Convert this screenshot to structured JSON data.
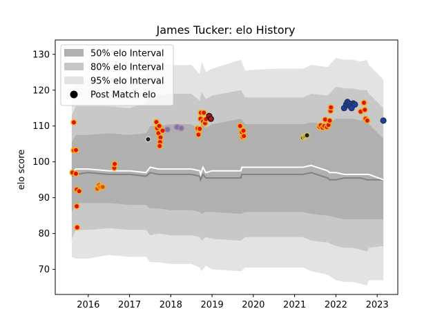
{
  "chart_data": {
    "type": "line",
    "title": "James Tucker: elo History",
    "xlabel": "",
    "ylabel": "elo score",
    "xlim": [
      2015.2,
      2023.5
    ],
    "ylim": [
      63.0,
      134.0
    ],
    "x_ticks": [
      2016,
      2017,
      2018,
      2019,
      2020,
      2021,
      2022,
      2023
    ],
    "y_ticks": [
      70,
      80,
      90,
      100,
      110,
      120,
      130
    ],
    "grid": false,
    "legend_position": "upper-left",
    "legend": [
      {
        "label": "50% elo Interval",
        "color": "#b0b0b0"
      },
      {
        "label": "80% elo Interval",
        "color": "#c6c6c6"
      },
      {
        "label": "95% elo Interval",
        "color": "#e3e3e3"
      },
      {
        "label": "Post Match elo",
        "color": "#000000"
      }
    ],
    "colors": {
      "band50": "#b0b0b0",
      "band80": "#c8c8c8",
      "band95": "#e3e3e3",
      "median_line": "#808080",
      "mean_line": "#ffffff",
      "point_edge_default": "#f2b01e",
      "point_fill_default": "#e01010"
    },
    "series": [
      {
        "name": "95% elo Interval",
        "x": [
          2015.6,
          2015.7,
          2016.0,
          2016.5,
          2017.0,
          2017.4,
          2017.5,
          2017.7,
          2018.0,
          2018.5,
          2018.7,
          2018.75,
          2018.85,
          2019.0,
          2019.7,
          2019.8,
          2020.5,
          2021.2,
          2021.4,
          2021.8,
          2022.0,
          2022.2,
          2022.4,
          2022.6,
          2022.75,
          2022.8,
          2023.15
        ],
        "lower": [
          73.5,
          73.0,
          73.0,
          74.0,
          73.5,
          73.5,
          72.0,
          72.0,
          71.5,
          71.5,
          70.5,
          69.5,
          71.0,
          70.0,
          69.5,
          70.5,
          70.5,
          70.5,
          69.5,
          68.5,
          67.0,
          66.5,
          66.5,
          66.0,
          65.5,
          67.0,
          67.0
        ],
        "upper": [
          118.0,
          123.0,
          123.0,
          122.5,
          123.5,
          124.0,
          126.5,
          127.0,
          127.0,
          127.0,
          124.5,
          128.0,
          125.0,
          126.0,
          128.5,
          125.5,
          126.0,
          126.0,
          127.0,
          126.5,
          129.0,
          128.5,
          128.5,
          128.0,
          128.5,
          127.0,
          123.0
        ]
      },
      {
        "name": "80% elo Interval",
        "x": [
          2015.6,
          2015.7,
          2016.0,
          2016.5,
          2017.0,
          2017.4,
          2017.5,
          2017.7,
          2018.0,
          2018.5,
          2018.7,
          2018.75,
          2018.85,
          2019.0,
          2019.7,
          2019.8,
          2020.5,
          2021.2,
          2021.4,
          2021.8,
          2022.0,
          2022.2,
          2022.4,
          2022.6,
          2022.75,
          2022.8,
          2023.15
        ],
        "lower": [
          78.5,
          81.0,
          81.0,
          81.5,
          81.0,
          81.0,
          79.5,
          80.0,
          79.5,
          79.5,
          79.0,
          78.0,
          79.0,
          78.5,
          78.0,
          79.0,
          79.0,
          79.0,
          78.0,
          77.5,
          76.5,
          76.0,
          76.0,
          75.5,
          75.0,
          76.0,
          76.5
        ],
        "upper": [
          113.0,
          115.5,
          115.5,
          115.5,
          115.0,
          116.5,
          118.5,
          118.5,
          119.0,
          119.0,
          117.0,
          119.5,
          117.5,
          118.5,
          120.0,
          118.0,
          118.0,
          118.0,
          119.0,
          118.5,
          121.0,
          120.5,
          120.5,
          120.0,
          120.0,
          119.0,
          115.0
        ]
      },
      {
        "name": "50% elo Interval",
        "x": [
          2015.6,
          2015.7,
          2016.0,
          2016.5,
          2017.0,
          2017.4,
          2017.5,
          2017.7,
          2018.0,
          2018.5,
          2018.7,
          2018.75,
          2018.85,
          2019.0,
          2019.7,
          2019.8,
          2020.5,
          2021.2,
          2021.4,
          2021.8,
          2022.0,
          2022.2,
          2022.4,
          2022.6,
          2022.75,
          2022.8,
          2023.15
        ],
        "lower": [
          86.0,
          88.5,
          88.5,
          88.5,
          88.0,
          88.0,
          87.0,
          87.0,
          86.5,
          86.5,
          86.0,
          85.5,
          86.0,
          86.0,
          85.5,
          86.0,
          86.0,
          86.0,
          85.5,
          85.0,
          84.5,
          84.0,
          84.0,
          84.0,
          84.0,
          84.0,
          84.0
        ],
        "upper": [
          105.5,
          107.5,
          107.5,
          108.0,
          107.5,
          108.0,
          110.0,
          110.0,
          110.5,
          110.5,
          109.0,
          111.0,
          109.5,
          110.5,
          112.0,
          110.5,
          110.5,
          110.5,
          111.0,
          110.5,
          112.0,
          112.0,
          112.0,
          111.5,
          111.5,
          110.5,
          106.5
        ]
      },
      {
        "name": "median",
        "x": [
          2015.6,
          2015.7,
          2016.0,
          2016.5,
          2017.0,
          2017.4,
          2017.5,
          2017.7,
          2018.0,
          2018.5,
          2018.7,
          2018.72,
          2018.78,
          2018.85,
          2019.0,
          2019.7,
          2019.72,
          2019.8,
          2020.5,
          2021.2,
          2021.4,
          2021.8,
          2021.85,
          2022.0,
          2022.2,
          2022.4,
          2022.6,
          2022.75,
          2022.8,
          2023.15
        ],
        "values": [
          96.0,
          96.5,
          97.0,
          96.5,
          96.5,
          96.0,
          97.0,
          96.5,
          96.5,
          96.5,
          96.0,
          95.0,
          96.5,
          95.5,
          95.5,
          95.5,
          96.5,
          96.5,
          96.5,
          96.5,
          97.0,
          95.5,
          95.0,
          95.0,
          95.5,
          95.5,
          95.5,
          95.0,
          95.0,
          95.0
        ]
      },
      {
        "name": "mean",
        "x": [
          2015.6,
          2015.7,
          2016.0,
          2016.5,
          2017.0,
          2017.4,
          2017.5,
          2017.7,
          2018.0,
          2018.5,
          2018.7,
          2018.72,
          2018.78,
          2018.85,
          2019.0,
          2019.7,
          2019.72,
          2019.8,
          2020.5,
          2021.2,
          2021.4,
          2021.8,
          2021.85,
          2022.0,
          2022.2,
          2022.4,
          2022.6,
          2022.75,
          2022.8,
          2023.15
        ],
        "values": [
          97.0,
          98.0,
          98.0,
          97.5,
          97.5,
          97.0,
          98.5,
          98.0,
          98.0,
          98.0,
          97.5,
          96.5,
          98.5,
          97.0,
          97.5,
          97.5,
          98.5,
          98.5,
          98.5,
          98.5,
          99.0,
          97.5,
          97.0,
          97.0,
          96.5,
          96.5,
          96.5,
          96.5,
          96.5,
          95.0
        ]
      }
    ],
    "points": [
      {
        "x": 2015.65,
        "y": 111.0,
        "fill": "#e01010",
        "edge": "#f2b01e"
      },
      {
        "x": 2015.65,
        "y": 103.2,
        "fill": "#e01010",
        "edge": "#f2b01e"
      },
      {
        "x": 2015.7,
        "y": 103.3,
        "fill": "#e01010",
        "edge": "#f2b01e"
      },
      {
        "x": 2015.62,
        "y": 97.0,
        "fill": "#e01010",
        "edge": "#f2b01e"
      },
      {
        "x": 2015.7,
        "y": 96.7,
        "fill": "#e01010",
        "edge": "#f2b01e"
      },
      {
        "x": 2015.72,
        "y": 92.3,
        "fill": "#e01010",
        "edge": "#f2b01e"
      },
      {
        "x": 2015.78,
        "y": 91.8,
        "fill": "#e01010",
        "edge": "#f2b01e"
      },
      {
        "x": 2015.72,
        "y": 87.6,
        "fill": "#e01010",
        "edge": "#f2b01e"
      },
      {
        "x": 2015.73,
        "y": 81.7,
        "fill": "#e01010",
        "edge": "#f2b01e"
      },
      {
        "x": 2016.22,
        "y": 92.5,
        "fill": "#e0501a",
        "edge": "#f2b01e"
      },
      {
        "x": 2016.26,
        "y": 93.5,
        "fill": "#e0501a",
        "edge": "#f2b01e"
      },
      {
        "x": 2016.3,
        "y": 93.0,
        "fill": "#e0501a",
        "edge": "#f2b01e"
      },
      {
        "x": 2016.35,
        "y": 93.0,
        "fill": "#e0501a",
        "edge": "#f2b01e"
      },
      {
        "x": 2016.63,
        "y": 98.3,
        "fill": "#e01010",
        "edge": "#f2b01e"
      },
      {
        "x": 2016.64,
        "y": 99.4,
        "fill": "#e01010",
        "edge": "#f2b01e"
      },
      {
        "x": 2017.45,
        "y": 106.3,
        "fill": "#202020",
        "edge": "#cccccc"
      },
      {
        "x": 2017.65,
        "y": 111.1,
        "fill": "#e01010",
        "edge": "#f2b01e"
      },
      {
        "x": 2017.67,
        "y": 109.4,
        "fill": "#e01010",
        "edge": "#f2b01e"
      },
      {
        "x": 2017.7,
        "y": 108.0,
        "fill": "#e01010",
        "edge": "#f2b01e"
      },
      {
        "x": 2017.72,
        "y": 110.0,
        "fill": "#e01010",
        "edge": "#f2b01e"
      },
      {
        "x": 2017.75,
        "y": 106.8,
        "fill": "#e01010",
        "edge": "#f2b01e"
      },
      {
        "x": 2017.74,
        "y": 105.5,
        "fill": "#e01010",
        "edge": "#f2b01e"
      },
      {
        "x": 2017.73,
        "y": 104.4,
        "fill": "#e01010",
        "edge": "#f2b01e"
      },
      {
        "x": 2017.8,
        "y": 108.7,
        "fill": "#e01010",
        "edge": "#f2b01e"
      },
      {
        "x": 2017.92,
        "y": 109.0,
        "fill": "#5d7fb0",
        "edge": "#c57a9b"
      },
      {
        "x": 2018.15,
        "y": 109.7,
        "fill": "#5d7fb0",
        "edge": "#c57a9b"
      },
      {
        "x": 2018.25,
        "y": 109.4,
        "fill": "#5d7fb0",
        "edge": "#c57a9b"
      },
      {
        "x": 2018.65,
        "y": 109.3,
        "fill": "#e01010",
        "edge": "#f2b01e"
      },
      {
        "x": 2018.67,
        "y": 107.6,
        "fill": "#e01010",
        "edge": "#f2b01e"
      },
      {
        "x": 2018.7,
        "y": 109.2,
        "fill": "#e01010",
        "edge": "#f2b01e"
      },
      {
        "x": 2018.72,
        "y": 112.0,
        "fill": "#e01010",
        "edge": "#f2b01e"
      },
      {
        "x": 2018.73,
        "y": 113.7,
        "fill": "#e01010",
        "edge": "#f2b01e"
      },
      {
        "x": 2018.78,
        "y": 111.3,
        "fill": "#e01010",
        "edge": "#f2b01e"
      },
      {
        "x": 2018.8,
        "y": 113.7,
        "fill": "#e01010",
        "edge": "#f2b01e"
      },
      {
        "x": 2018.83,
        "y": 110.8,
        "fill": "#e01010",
        "edge": "#f2b01e"
      },
      {
        "x": 2018.85,
        "y": 111.9,
        "fill": "#e01010",
        "edge": "#f2b01e"
      },
      {
        "x": 2018.93,
        "y": 112.8,
        "fill": "#c01010",
        "edge": "#202020"
      },
      {
        "x": 2018.97,
        "y": 112.0,
        "fill": "#c01010",
        "edge": "#202020"
      },
      {
        "x": 2019.68,
        "y": 110.0,
        "fill": "#e01010",
        "edge": "#f2b01e"
      },
      {
        "x": 2019.72,
        "y": 108.3,
        "fill": "#e01010",
        "edge": "#f2b01e"
      },
      {
        "x": 2019.74,
        "y": 106.9,
        "fill": "#e01010",
        "edge": "#f2b01e"
      },
      {
        "x": 2019.76,
        "y": 108.7,
        "fill": "#e01010",
        "edge": "#f2b01e"
      },
      {
        "x": 2019.77,
        "y": 107.2,
        "fill": "#e01010",
        "edge": "#f2b01e"
      },
      {
        "x": 2021.2,
        "y": 106.8,
        "fill": "#202020",
        "edge": "#d4c060"
      },
      {
        "x": 2021.24,
        "y": 107.0,
        "fill": "#202020",
        "edge": "#d4c060"
      },
      {
        "x": 2021.27,
        "y": 107.2,
        "fill": "#202020",
        "edge": "#d4c060"
      },
      {
        "x": 2021.3,
        "y": 107.4,
        "fill": "#202020",
        "edge": "#d4c060"
      },
      {
        "x": 2021.6,
        "y": 109.8,
        "fill": "#e01010",
        "edge": "#f2b01e"
      },
      {
        "x": 2021.63,
        "y": 110.2,
        "fill": "#e01010",
        "edge": "#f2b01e"
      },
      {
        "x": 2021.68,
        "y": 109.5,
        "fill": "#e01010",
        "edge": "#f2b01e"
      },
      {
        "x": 2021.72,
        "y": 110.0,
        "fill": "#e01010",
        "edge": "#f2b01e"
      },
      {
        "x": 2021.74,
        "y": 111.8,
        "fill": "#e01010",
        "edge": "#f2b01e"
      },
      {
        "x": 2021.78,
        "y": 109.7,
        "fill": "#e01010",
        "edge": "#f2b01e"
      },
      {
        "x": 2021.82,
        "y": 110.3,
        "fill": "#e01010",
        "edge": "#f2b01e"
      },
      {
        "x": 2021.85,
        "y": 111.5,
        "fill": "#e01010",
        "edge": "#f2b01e"
      },
      {
        "x": 2021.87,
        "y": 114.2,
        "fill": "#e01010",
        "edge": "#f2b01e"
      },
      {
        "x": 2021.88,
        "y": 115.2,
        "fill": "#e01010",
        "edge": "#f2b01e"
      },
      {
        "x": 2022.2,
        "y": 115.0,
        "fill": "#1e3f9c",
        "edge": "#223366"
      },
      {
        "x": 2022.25,
        "y": 116.0,
        "fill": "#1e3f9c",
        "edge": "#223366"
      },
      {
        "x": 2022.28,
        "y": 116.7,
        "fill": "#1e3f9c",
        "edge": "#223366"
      },
      {
        "x": 2022.32,
        "y": 116.3,
        "fill": "#1e3f9c",
        "edge": "#223366"
      },
      {
        "x": 2022.35,
        "y": 115.5,
        "fill": "#1e3f9c",
        "edge": "#223366"
      },
      {
        "x": 2022.38,
        "y": 115.0,
        "fill": "#1e3f9c",
        "edge": "#223366"
      },
      {
        "x": 2022.42,
        "y": 116.3,
        "fill": "#1e3f9c",
        "edge": "#223366"
      },
      {
        "x": 2022.46,
        "y": 116.0,
        "fill": "#1e3f9c",
        "edge": "#223366"
      },
      {
        "x": 2022.6,
        "y": 114.0,
        "fill": "#e01010",
        "edge": "#f2b01e"
      },
      {
        "x": 2022.68,
        "y": 116.5,
        "fill": "#e01010",
        "edge": "#f2b01e"
      },
      {
        "x": 2022.7,
        "y": 114.5,
        "fill": "#e01010",
        "edge": "#f2b01e"
      },
      {
        "x": 2022.72,
        "y": 112.0,
        "fill": "#e01010",
        "edge": "#f2b01e"
      },
      {
        "x": 2022.76,
        "y": 111.5,
        "fill": "#e01010",
        "edge": "#f2b01e"
      },
      {
        "x": 2023.15,
        "y": 111.5,
        "fill": "#1e3f9c",
        "edge": "#223366"
      }
    ]
  }
}
